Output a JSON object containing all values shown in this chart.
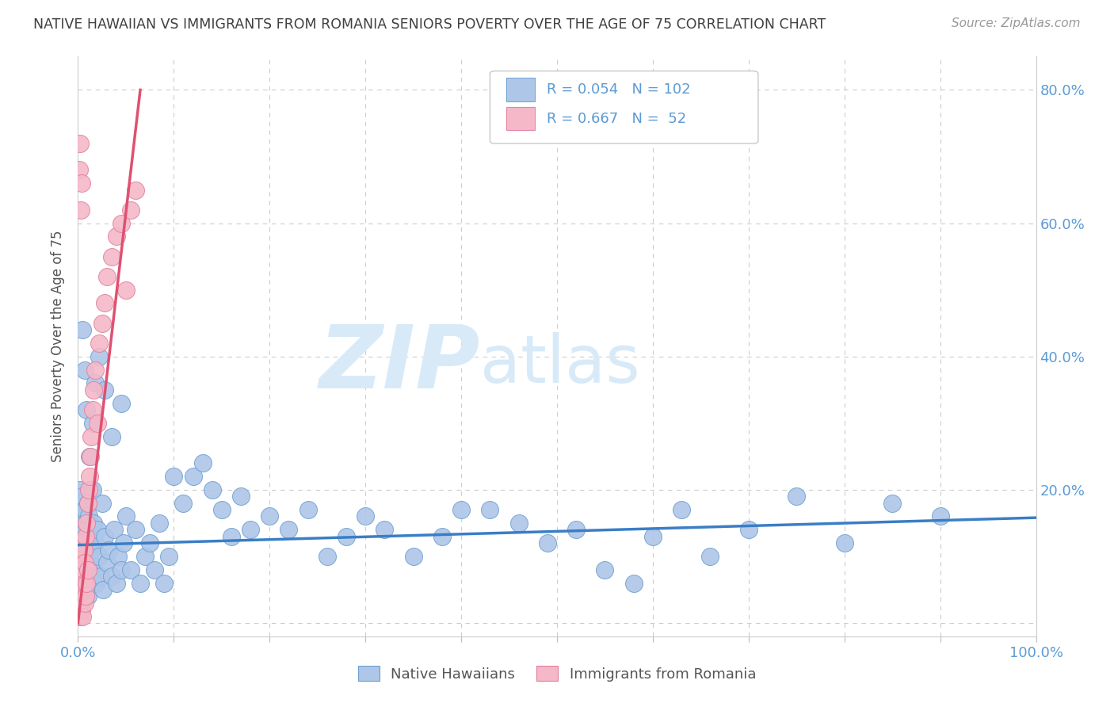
{
  "title": "NATIVE HAWAIIAN VS IMMIGRANTS FROM ROMANIA SENIORS POVERTY OVER THE AGE OF 75 CORRELATION CHART",
  "source": "Source: ZipAtlas.com",
  "ylabel": "Seniors Poverty Over the Age of 75",
  "blue_R": 0.054,
  "blue_N": 102,
  "pink_R": 0.667,
  "pink_N": 52,
  "blue_color": "#AEC6E8",
  "pink_color": "#F4B8C8",
  "blue_edge_color": "#6DA0D0",
  "pink_edge_color": "#E080A0",
  "blue_line_color": "#3A7EC6",
  "pink_line_color": "#E05070",
  "axis_color": "#5B9BD5",
  "title_color": "#404040",
  "watermark_color": "#D8EAF8",
  "xlim": [
    0.0,
    1.0
  ],
  "ylim": [
    -0.02,
    0.85
  ],
  "blue_scatter_x": [
    0.001,
    0.001,
    0.002,
    0.002,
    0.002,
    0.003,
    0.003,
    0.003,
    0.003,
    0.004,
    0.004,
    0.004,
    0.005,
    0.005,
    0.005,
    0.006,
    0.006,
    0.007,
    0.007,
    0.008,
    0.008,
    0.009,
    0.009,
    0.01,
    0.01,
    0.011,
    0.011,
    0.012,
    0.013,
    0.014,
    0.015,
    0.016,
    0.017,
    0.018,
    0.019,
    0.02,
    0.022,
    0.024,
    0.025,
    0.026,
    0.028,
    0.03,
    0.032,
    0.035,
    0.038,
    0.04,
    0.042,
    0.045,
    0.048,
    0.05,
    0.055,
    0.06,
    0.065,
    0.07,
    0.075,
    0.08,
    0.085,
    0.09,
    0.095,
    0.1,
    0.11,
    0.12,
    0.13,
    0.14,
    0.15,
    0.16,
    0.17,
    0.18,
    0.2,
    0.22,
    0.24,
    0.26,
    0.28,
    0.3,
    0.32,
    0.35,
    0.38,
    0.4,
    0.43,
    0.46,
    0.49,
    0.52,
    0.55,
    0.58,
    0.6,
    0.63,
    0.66,
    0.7,
    0.75,
    0.8,
    0.85,
    0.9,
    0.005,
    0.007,
    0.009,
    0.012,
    0.015,
    0.018,
    0.022,
    0.028,
    0.035,
    0.045
  ],
  "blue_scatter_y": [
    0.13,
    0.08,
    0.2,
    0.11,
    0.06,
    0.18,
    0.14,
    0.09,
    0.05,
    0.16,
    0.12,
    0.07,
    0.19,
    0.1,
    0.04,
    0.15,
    0.08,
    0.17,
    0.06,
    0.14,
    0.05,
    0.12,
    0.08,
    0.18,
    0.04,
    0.16,
    0.07,
    0.13,
    0.09,
    0.11,
    0.2,
    0.15,
    0.08,
    0.12,
    0.06,
    0.14,
    0.1,
    0.07,
    0.18,
    0.05,
    0.13,
    0.09,
    0.11,
    0.07,
    0.14,
    0.06,
    0.1,
    0.08,
    0.12,
    0.16,
    0.08,
    0.14,
    0.06,
    0.1,
    0.12,
    0.08,
    0.15,
    0.06,
    0.1,
    0.22,
    0.18,
    0.22,
    0.24,
    0.2,
    0.17,
    0.13,
    0.19,
    0.14,
    0.16,
    0.14,
    0.17,
    0.1,
    0.13,
    0.16,
    0.14,
    0.1,
    0.13,
    0.17,
    0.17,
    0.15,
    0.12,
    0.14,
    0.08,
    0.06,
    0.13,
    0.17,
    0.1,
    0.14,
    0.19,
    0.12,
    0.18,
    0.16,
    0.44,
    0.38,
    0.32,
    0.25,
    0.3,
    0.36,
    0.4,
    0.35,
    0.28,
    0.33
  ],
  "pink_scatter_x": [
    0.0005,
    0.001,
    0.001,
    0.001,
    0.0015,
    0.002,
    0.002,
    0.002,
    0.002,
    0.003,
    0.003,
    0.003,
    0.003,
    0.004,
    0.004,
    0.004,
    0.004,
    0.005,
    0.005,
    0.005,
    0.006,
    0.006,
    0.007,
    0.007,
    0.008,
    0.008,
    0.009,
    0.009,
    0.01,
    0.01,
    0.011,
    0.012,
    0.013,
    0.014,
    0.015,
    0.016,
    0.018,
    0.02,
    0.022,
    0.025,
    0.028,
    0.03,
    0.035,
    0.04,
    0.045,
    0.05,
    0.055,
    0.06,
    0.001,
    0.002,
    0.003,
    0.004
  ],
  "pink_scatter_y": [
    0.02,
    0.04,
    0.01,
    0.07,
    0.03,
    0.05,
    0.02,
    0.08,
    0.01,
    0.06,
    0.1,
    0.03,
    0.07,
    0.04,
    0.09,
    0.02,
    0.12,
    0.05,
    0.08,
    0.01,
    0.06,
    0.11,
    0.03,
    0.09,
    0.04,
    0.13,
    0.06,
    0.15,
    0.08,
    0.18,
    0.2,
    0.22,
    0.25,
    0.28,
    0.32,
    0.35,
    0.38,
    0.3,
    0.42,
    0.45,
    0.48,
    0.52,
    0.55,
    0.58,
    0.6,
    0.5,
    0.62,
    0.65,
    0.68,
    0.72,
    0.62,
    0.66
  ],
  "blue_trend": [
    0.0,
    1.0,
    0.117,
    0.158
  ],
  "pink_trend_x": [
    0.0,
    0.065
  ],
  "pink_trend_y": [
    0.0,
    0.8
  ]
}
